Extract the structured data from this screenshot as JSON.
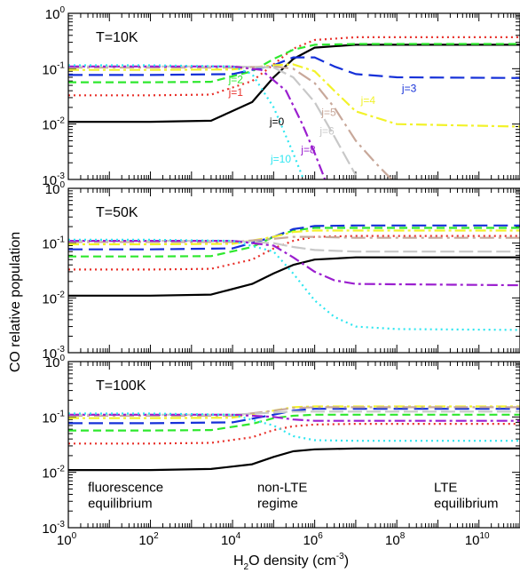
{
  "chart_data": {
    "type": "line",
    "xlabel_parts": [
      "H",
      "2",
      "O density (cm",
      "-3",
      ")"
    ],
    "ylabel": "CO relative population",
    "x_scale": "log",
    "y_scale": "log",
    "xlim": [
      1,
      100000000000.0
    ],
    "ylim": [
      0.001,
      1
    ],
    "x_ticks": [
      {
        "value": 1,
        "base": "10",
        "exp": "0"
      },
      {
        "value": 100,
        "base": "10",
        "exp": "2"
      },
      {
        "value": 10000,
        "base": "10",
        "exp": "4"
      },
      {
        "value": 1000000,
        "base": "10",
        "exp": "6"
      },
      {
        "value": 100000000,
        "base": "10",
        "exp": "8"
      },
      {
        "value": 10000000000,
        "base": "10",
        "exp": "10"
      }
    ],
    "y_ticks": [
      {
        "value": 1,
        "base": "10",
        "exp": "0"
      },
      {
        "value": 0.1,
        "base": "10",
        "exp": "-1"
      },
      {
        "value": 0.01,
        "base": "10",
        "exp": "-2"
      },
      {
        "value": 0.001,
        "base": "10",
        "exp": "-3"
      }
    ],
    "series_styles": [
      {
        "j": 0,
        "color": "#000000",
        "dash": ""
      },
      {
        "j": 1,
        "color": "#e8302a",
        "dash": "2,4"
      },
      {
        "j": 2,
        "color": "#2ee82e",
        "dash": "9,5"
      },
      {
        "j": 3,
        "color": "#1530d8",
        "dash": "16,7"
      },
      {
        "j": 4,
        "color": "#f2f22a",
        "dash": "12,4,3,4"
      },
      {
        "j": 5,
        "color": "#c8a89a",
        "dash": "16,5,3,5"
      },
      {
        "j": 6,
        "color": "#c8c8c8",
        "dash": "16,5"
      },
      {
        "j": 8,
        "color": "#9b1fcf",
        "dash": "12,4,3,4"
      },
      {
        "j": 10,
        "color": "#2ee6f0",
        "dash": "2,4"
      }
    ],
    "panels": [
      {
        "label": "T=10K",
        "series": [
          {
            "j": 0,
            "x": [
              1,
              100,
              3000,
              30000,
              100000,
              300000,
              1000000,
              10000000,
              100000000000
            ],
            "y": [
              0.011,
              0.011,
              0.0115,
              0.025,
              0.07,
              0.15,
              0.24,
              0.27,
              0.27
            ]
          },
          {
            "j": 1,
            "x": [
              1,
              100,
              3000,
              30000,
              100000,
              300000,
              1000000,
              10000000,
              100000000000
            ],
            "y": [
              0.033,
              0.033,
              0.034,
              0.06,
              0.12,
              0.23,
              0.33,
              0.37,
              0.37
            ]
          },
          {
            "j": 2,
            "x": [
              1,
              100,
              3000,
              30000,
              100000,
              300000,
              1000000,
              10000000,
              100000000000
            ],
            "y": [
              0.057,
              0.057,
              0.058,
              0.09,
              0.15,
              0.22,
              0.27,
              0.28,
              0.28
            ]
          },
          {
            "j": 3,
            "x": [
              1,
              100,
              10000,
              100000,
              300000,
              1000000,
              3000000,
              10000000,
              100000000,
              100000000000
            ],
            "y": [
              0.077,
              0.077,
              0.08,
              0.115,
              0.16,
              0.16,
              0.11,
              0.08,
              0.07,
              0.068
            ]
          },
          {
            "j": 4,
            "x": [
              1,
              100,
              10000,
              100000,
              300000,
              1000000,
              3000000,
              10000000,
              100000000,
              100000000000
            ],
            "y": [
              0.095,
              0.095,
              0.097,
              0.115,
              0.12,
              0.09,
              0.04,
              0.017,
              0.01,
              0.009
            ]
          },
          {
            "j": 5,
            "x": [
              1,
              100,
              10000,
              100000,
              300000,
              1000000,
              3000000,
              10000000,
              30000000,
              100000000
            ],
            "y": [
              0.105,
              0.105,
              0.105,
              0.11,
              0.1,
              0.055,
              0.02,
              0.005,
              0.002,
              0.0008
            ]
          },
          {
            "j": 6,
            "x": [
              1,
              100,
              10000,
              100000,
              300000,
              1000000,
              3000000,
              10000000
            ],
            "y": [
              0.11,
              0.11,
              0.11,
              0.105,
              0.07,
              0.025,
              0.006,
              0.0012
            ]
          },
          {
            "j": 8,
            "x": [
              1,
              100,
              10000,
              50000,
              200000,
              500000,
              1000000,
              2000000
            ],
            "y": [
              0.11,
              0.11,
              0.11,
              0.095,
              0.04,
              0.01,
              0.003,
              0.0008
            ]
          },
          {
            "j": 10,
            "x": [
              1,
              100,
              10000,
              30000,
              100000,
              300000,
              600000
            ],
            "y": [
              0.115,
              0.115,
              0.11,
              0.08,
              0.02,
              0.003,
              0.0008
            ]
          }
        ],
        "labels": [
          {
            "text": "j=0",
            "j": 0,
            "x": 120000,
            "y": 0.0095
          },
          {
            "text": "j=1",
            "j": 1,
            "x": 12000,
            "y": 0.032
          },
          {
            "text": "j=2",
            "j": 2,
            "x": 12000,
            "y": 0.055
          },
          {
            "text": "j=3",
            "j": 3,
            "x": 200000000,
            "y": 0.038
          },
          {
            "text": "j=4",
            "j": 4,
            "x": 20000000,
            "y": 0.023
          },
          {
            "text": "j=5",
            "j": 5,
            "x": 2200000,
            "y": 0.014
          },
          {
            "text": "j=6",
            "j": 6,
            "x": 2000000,
            "y": 0.0065
          },
          {
            "text": "j=8",
            "j": 8,
            "x": 700000,
            "y": 0.003
          },
          {
            "text": "j=10",
            "j": 10,
            "x": 150000,
            "y": 0.002
          }
        ],
        "annotations": []
      },
      {
        "label": "T=50K",
        "series": [
          {
            "j": 0,
            "x": [
              1,
              100,
              3000,
              30000,
              100000,
              300000,
              1000000,
              10000000,
              100000000000
            ],
            "y": [
              0.011,
              0.011,
              0.0115,
              0.018,
              0.028,
              0.04,
              0.05,
              0.055,
              0.055
            ]
          },
          {
            "j": 1,
            "x": [
              1,
              100,
              3000,
              30000,
              100000,
              300000,
              1000000,
              10000000,
              100000000000
            ],
            "y": [
              0.033,
              0.033,
              0.034,
              0.05,
              0.08,
              0.11,
              0.13,
              0.135,
              0.135
            ]
          },
          {
            "j": 2,
            "x": [
              1,
              100,
              3000,
              30000,
              100000,
              300000,
              1000000,
              10000000,
              100000000000
            ],
            "y": [
              0.057,
              0.057,
              0.058,
              0.085,
              0.13,
              0.17,
              0.19,
              0.19,
              0.19
            ]
          },
          {
            "j": 3,
            "x": [
              1,
              100,
              10000,
              100000,
              300000,
              1000000,
              10000000,
              100000000000
            ],
            "y": [
              0.077,
              0.077,
              0.08,
              0.13,
              0.18,
              0.205,
              0.21,
              0.21
            ]
          },
          {
            "j": 4,
            "x": [
              1,
              100,
              10000,
              100000,
              300000,
              1000000,
              10000000,
              100000000000
            ],
            "y": [
              0.095,
              0.095,
              0.097,
              0.13,
              0.16,
              0.17,
              0.17,
              0.17
            ]
          },
          {
            "j": 5,
            "x": [
              1,
              100,
              10000,
              100000,
              300000,
              1000000,
              10000000,
              100000000000
            ],
            "y": [
              0.105,
              0.105,
              0.105,
              0.12,
              0.13,
              0.13,
              0.125,
              0.125
            ]
          },
          {
            "j": 6,
            "x": [
              1,
              100,
              10000,
              100000,
              300000,
              1000000,
              10000000,
              100000000000
            ],
            "y": [
              0.11,
              0.11,
              0.11,
              0.1,
              0.085,
              0.075,
              0.07,
              0.07
            ]
          },
          {
            "j": 8,
            "x": [
              1,
              100,
              10000,
              100000,
              300000,
              1000000,
              3000000,
              10000000,
              100000000000
            ],
            "y": [
              0.11,
              0.11,
              0.11,
              0.09,
              0.055,
              0.03,
              0.021,
              0.018,
              0.017
            ]
          },
          {
            "j": 10,
            "x": [
              1,
              100,
              10000,
              100000,
              300000,
              1000000,
              3000000,
              10000000,
              100000000,
              100000000000
            ],
            "y": [
              0.115,
              0.115,
              0.11,
              0.07,
              0.028,
              0.009,
              0.0045,
              0.003,
              0.0027,
              0.0026
            ]
          }
        ],
        "labels": [],
        "annotations": []
      },
      {
        "label": "T=100K",
        "series": [
          {
            "j": 0,
            "x": [
              1,
              100,
              3000,
              30000,
              100000,
              300000,
              1000000,
              10000000,
              100000000000
            ],
            "y": [
              0.011,
              0.011,
              0.0115,
              0.014,
              0.019,
              0.024,
              0.026,
              0.027,
              0.027
            ]
          },
          {
            "j": 1,
            "x": [
              1,
              100,
              3000,
              30000,
              100000,
              300000,
              1000000,
              10000000,
              100000000000
            ],
            "y": [
              0.033,
              0.033,
              0.034,
              0.043,
              0.058,
              0.068,
              0.073,
              0.075,
              0.075
            ]
          },
          {
            "j": 2,
            "x": [
              1,
              100,
              3000,
              30000,
              100000,
              300000,
              1000000,
              10000000,
              100000000000
            ],
            "y": [
              0.057,
              0.057,
              0.058,
              0.075,
              0.095,
              0.105,
              0.11,
              0.11,
              0.11
            ]
          },
          {
            "j": 3,
            "x": [
              1,
              100,
              10000,
              100000,
              300000,
              1000000,
              10000000,
              100000000000
            ],
            "y": [
              0.077,
              0.077,
              0.08,
              0.11,
              0.13,
              0.14,
              0.14,
              0.14
            ]
          },
          {
            "j": 4,
            "x": [
              1,
              100,
              10000,
              100000,
              300000,
              1000000,
              10000000,
              100000000000
            ],
            "y": [
              0.095,
              0.095,
              0.097,
              0.13,
              0.15,
              0.155,
              0.155,
              0.155
            ]
          },
          {
            "j": 5,
            "x": [
              1,
              100,
              10000,
              100000,
              300000,
              1000000,
              10000000,
              100000000000
            ],
            "y": [
              0.105,
              0.105,
              0.105,
              0.13,
              0.145,
              0.15,
              0.15,
              0.15
            ]
          },
          {
            "j": 6,
            "x": [
              1,
              100,
              10000,
              100000,
              300000,
              1000000,
              10000000,
              100000000000
            ],
            "y": [
              0.11,
              0.11,
              0.11,
              0.12,
              0.125,
              0.125,
              0.125,
              0.125
            ]
          },
          {
            "j": 8,
            "x": [
              1,
              100,
              10000,
              100000,
              300000,
              1000000,
              10000000,
              100000000000
            ],
            "y": [
              0.11,
              0.11,
              0.11,
              0.1,
              0.09,
              0.085,
              0.085,
              0.085
            ]
          },
          {
            "j": 10,
            "x": [
              1,
              100,
              10000,
              100000,
              300000,
              1000000,
              10000000,
              100000000000
            ],
            "y": [
              0.115,
              0.115,
              0.11,
              0.07,
              0.045,
              0.038,
              0.037,
              0.037
            ]
          }
        ],
        "labels": [],
        "annotations": [
          {
            "lines": [
              "fluorescence",
              "equilibrium"
            ],
            "x": 3,
            "y": 0.0045
          },
          {
            "lines": [
              "non-LTE",
              "regime"
            ],
            "x": 40000,
            "y": 0.0045
          },
          {
            "lines": [
              "LTE",
              "equilibrium"
            ],
            "x": 800000000,
            "y": 0.0045
          }
        ]
      }
    ]
  }
}
